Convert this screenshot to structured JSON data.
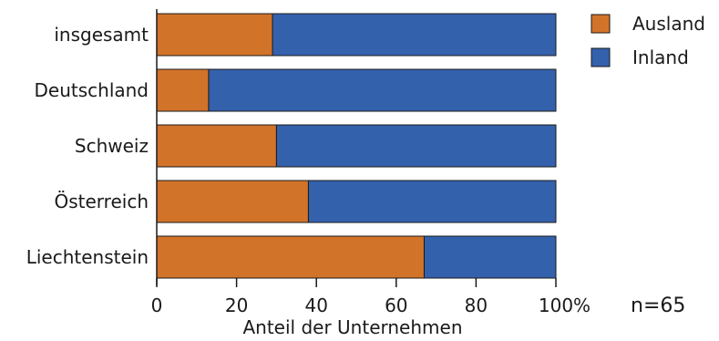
{
  "chart_data": {
    "type": "bar",
    "orientation": "horizontal",
    "stacked": true,
    "categories": [
      "insgesamt",
      "Deutschland",
      "Schweiz",
      "Österreich",
      "Liechtenstein"
    ],
    "series": [
      {
        "name": "Ausland",
        "color": "#d2732a",
        "values": [
          29,
          13,
          30,
          38,
          67
        ]
      },
      {
        "name": "Inland",
        "color": "#3461ac",
        "values": [
          71,
          87,
          70,
          62,
          33
        ]
      }
    ],
    "xlim": [
      0,
      100
    ],
    "xticks": [
      0,
      20,
      40,
      60,
      80,
      100
    ],
    "tick_labels": [
      "0",
      "20",
      "40",
      "60",
      "80",
      "100"
    ],
    "xunit": "%",
    "xlabel": "Anteil der Unternehmen",
    "annotation": "n=65",
    "legend_position": "top-right",
    "grid": false
  }
}
